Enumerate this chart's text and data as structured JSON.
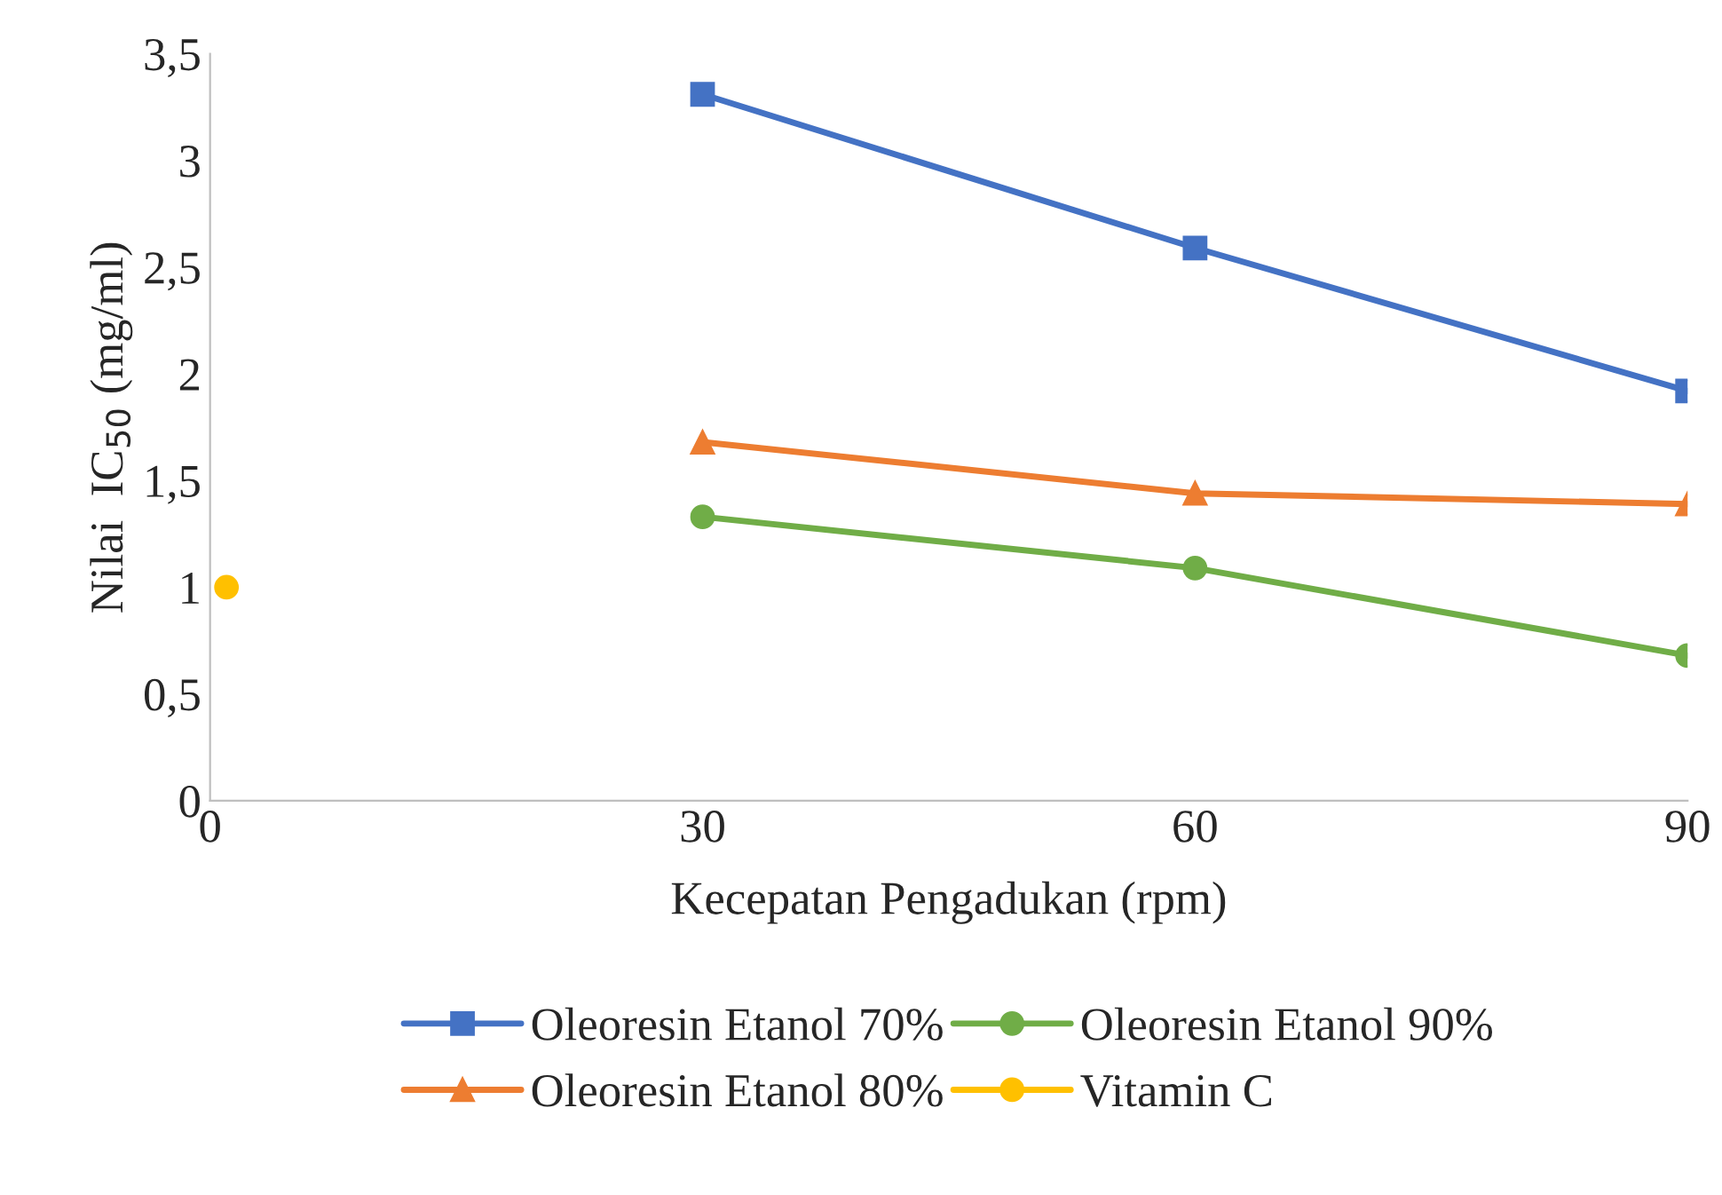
{
  "chart_data": {
    "type": "line",
    "xlabel": "Kecepatan Pengadukan (rpm)",
    "ylabel": "Nilai  IC$_{50}$ (mg/ml)",
    "xlim": [
      0,
      90
    ],
    "xticks": [
      0,
      30,
      60,
      90
    ],
    "ylim": [
      0,
      3.5
    ],
    "yticks": [
      0,
      {
        "value": 0.5,
        "label": "0,5"
      },
      1,
      {
        "value": 1.5,
        "label": "1,5"
      },
      2,
      {
        "value": 2.5,
        "label": "2,5"
      },
      3,
      {
        "value": 3.5,
        "label": "3,5"
      }
    ],
    "grid": false,
    "legend": "bottom",
    "series": [
      {
        "name": "Oleoresin Etanol 70%",
        "color": "#4472c4",
        "marker": "square",
        "x": [
          30,
          60,
          90
        ],
        "values": [
          3.31,
          2.59,
          1.92
        ]
      },
      {
        "name": "Oleoresin Etanol 80%",
        "color": "#ed7d31",
        "marker": "triangle",
        "x": [
          30,
          60,
          90
        ],
        "values": [
          1.68,
          1.44,
          1.39
        ]
      },
      {
        "name": "Oleoresin Etanol 90%",
        "color": "#70ad47",
        "marker": "circle",
        "x": [
          30,
          60,
          90
        ],
        "values": [
          1.33,
          1.09,
          0.68
        ]
      },
      {
        "name": "Vitamin C",
        "color": "#ffc000",
        "marker": "circle",
        "x": [
          1
        ],
        "values": [
          1.0
        ]
      }
    ]
  }
}
